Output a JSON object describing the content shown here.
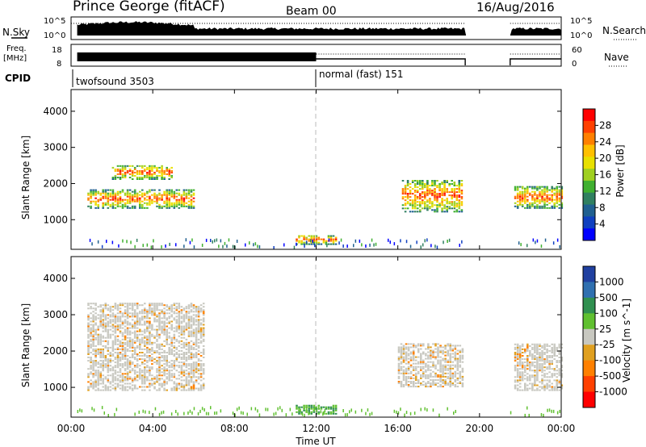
{
  "header": {
    "station": "Prince George (fitACF)",
    "beam": "Beam 00",
    "date": "16/Aug/2016"
  },
  "sky_panel": {
    "left_label": "N.Sky",
    "right_label": "N.Search",
    "left_ticks": [
      "10^5",
      "10^0"
    ],
    "right_ticks": [
      "10^5",
      "10^0"
    ]
  },
  "freq_panel": {
    "left_label_top": "Freq.",
    "left_label_bottom": "[MHz]",
    "right_label": "Nave",
    "left_ticks": [
      "18",
      "8"
    ],
    "right_ticks": [
      "60",
      "0"
    ]
  },
  "cpid": {
    "label": "CPID",
    "modes": [
      {
        "name": "twofsound 3503",
        "start": 0
      },
      {
        "name": "normal (fast) 151",
        "start": 12
      }
    ]
  },
  "x_axis": {
    "label": "Time UT",
    "ticks": [
      "00:00",
      "04:00",
      "08:00",
      "12:00",
      "16:00",
      "20:00",
      "00:00"
    ],
    "range_hours": [
      0,
      24
    ]
  },
  "data_gaps_hours": [
    [
      19.3,
      21.5
    ]
  ],
  "power_scale": {
    "label": "Power [dB]",
    "ticks": [
      "28",
      "24",
      "20",
      "16",
      "12",
      "8",
      "4"
    ],
    "colors": [
      "#ff0000",
      "#ff4000",
      "#ff8000",
      "#ffc000",
      "#e8e000",
      "#a0d020",
      "#40b030",
      "#308060",
      "#206090",
      "#1040c0",
      "#0000ff"
    ]
  },
  "velocity_scale": {
    "label": "Velocity [m s^-1]",
    "ticks": [
      "1000",
      "500",
      "100",
      "25",
      "-25",
      "-100",
      "-500",
      "-1000"
    ],
    "colors": [
      "#2040a0",
      "#3070b0",
      "#309050",
      "#60c030",
      "#c8c8c0",
      "#e0a020",
      "#ff8000",
      "#ff4000",
      "#ff0000"
    ]
  },
  "chart_data": [
    {
      "type": "heatmap",
      "title": "",
      "xlabel": "",
      "ylabel": "Slant Range [km]",
      "yticks": [
        "1000",
        "2000",
        "3000",
        "4000"
      ],
      "ylim": [
        180,
        4600
      ],
      "colorbar": "Power [dB]",
      "regions": [
        {
          "t": [
            0.8,
            6.0
          ],
          "r": [
            1300,
            1800
          ],
          "level": "high"
        },
        {
          "t": [
            2.0,
            5.0
          ],
          "r": [
            2100,
            2500
          ],
          "level": "high"
        },
        {
          "t": [
            16.2,
            19.2
          ],
          "r": [
            1200,
            2100
          ],
          "level": "high"
        },
        {
          "t": [
            21.7,
            24.0
          ],
          "r": [
            1300,
            1900
          ],
          "level": "high"
        },
        {
          "t": [
            11.0,
            13.0
          ],
          "r": [
            300,
            550
          ],
          "level": "medium"
        }
      ]
    },
    {
      "type": "heatmap",
      "title": "",
      "xlabel": "Time UT",
      "ylabel": "Slant Range [km]",
      "yticks": [
        "1000",
        "2000",
        "3000",
        "4000"
      ],
      "ylim": [
        180,
        4600
      ],
      "colorbar": "Velocity [m s^-1]",
      "regions": [
        {
          "t": [
            0.8,
            6.5
          ],
          "r": [
            900,
            3300
          ],
          "level": "near zero"
        },
        {
          "t": [
            16.0,
            19.2
          ],
          "r": [
            1000,
            2200
          ],
          "level": "near zero"
        },
        {
          "t": [
            21.7,
            24.0
          ],
          "r": [
            900,
            2200
          ],
          "level": "near zero"
        },
        {
          "t": [
            11.0,
            13.0
          ],
          "r": [
            250,
            500
          ],
          "level": "positive"
        }
      ]
    }
  ]
}
